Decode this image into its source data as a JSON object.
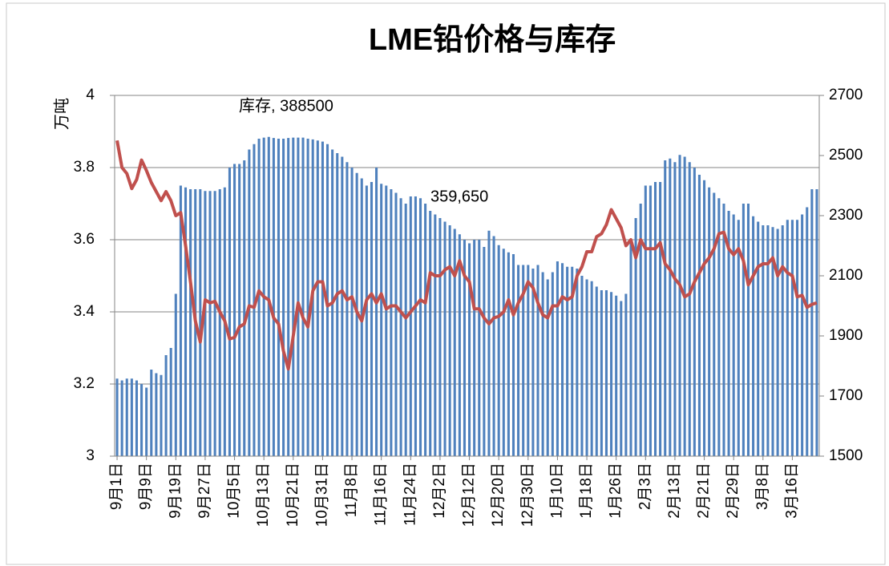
{
  "chart_data": {
    "type": "bar-line",
    "title": "LME铅价格与库存",
    "ylabel": "万吨",
    "annotations": [
      "库存, 388500",
      "359,650"
    ],
    "categories": [
      "9月1日",
      null,
      null,
      null,
      null,
      null,
      "9月9日",
      null,
      null,
      null,
      null,
      null,
      "9月19日",
      null,
      null,
      null,
      null,
      null,
      "9月27日",
      null,
      null,
      null,
      null,
      null,
      "10月5日",
      null,
      null,
      null,
      null,
      null,
      "10月13日",
      null,
      null,
      null,
      null,
      null,
      "10月21日",
      null,
      null,
      null,
      null,
      null,
      "10月31日",
      null,
      null,
      null,
      null,
      null,
      "11月8日",
      null,
      null,
      null,
      null,
      null,
      "11月16日",
      null,
      null,
      null,
      null,
      null,
      "11月24日",
      null,
      null,
      null,
      null,
      null,
      "12月2日",
      null,
      null,
      null,
      null,
      null,
      "12月12日",
      null,
      null,
      null,
      null,
      null,
      "12月20日",
      null,
      null,
      null,
      null,
      null,
      "12月30日",
      null,
      null,
      null,
      null,
      null,
      "1月10日",
      null,
      null,
      null,
      null,
      null,
      "1月18日",
      null,
      null,
      null,
      null,
      null,
      "1月26日",
      null,
      null,
      null,
      null,
      null,
      "2月3日",
      null,
      null,
      null,
      null,
      null,
      "2月13日",
      null,
      null,
      null,
      null,
      null,
      "2月21日",
      null,
      null,
      null,
      null,
      null,
      "2月29日",
      null,
      null,
      null,
      null,
      null,
      "3月8日",
      null,
      null,
      null,
      null,
      null,
      "3月16日",
      null,
      null,
      null,
      null,
      null
    ],
    "series": [
      {
        "type": "bar",
        "color": "#4f81bd",
        "axis": "y",
        "values": [
          3.215,
          3.21,
          3.215,
          3.215,
          3.21,
          3.2,
          3.19,
          3.24,
          3.23,
          3.225,
          3.28,
          3.3,
          3.45,
          3.75,
          3.745,
          3.74,
          3.74,
          3.74,
          3.735,
          3.735,
          3.735,
          3.74,
          3.745,
          3.8,
          3.81,
          3.81,
          3.82,
          3.85,
          3.865,
          3.88,
          3.883,
          3.885,
          3.882,
          3.88,
          3.88,
          3.882,
          3.883,
          3.883,
          3.883,
          3.88,
          3.878,
          3.875,
          3.872,
          3.865,
          3.85,
          3.84,
          3.83,
          3.815,
          3.8,
          3.785,
          3.77,
          3.75,
          3.76,
          3.8,
          3.755,
          3.75,
          3.74,
          3.73,
          3.715,
          3.7,
          3.72,
          3.72,
          3.715,
          3.7,
          3.68,
          3.67,
          3.66,
          3.65,
          3.64,
          3.63,
          3.615,
          3.6,
          3.59,
          3.6,
          3.6,
          3.58,
          3.625,
          3.61,
          3.585,
          3.575,
          3.565,
          3.56,
          3.53,
          3.53,
          3.53,
          3.52,
          3.53,
          3.51,
          3.49,
          3.51,
          3.54,
          3.535,
          3.525,
          3.525,
          3.52,
          3.5,
          3.49,
          3.485,
          3.47,
          3.46,
          3.46,
          3.455,
          3.445,
          3.43,
          3.45,
          3.6,
          3.66,
          3.7,
          3.75,
          3.75,
          3.76,
          3.76,
          3.82,
          3.825,
          3.815,
          3.835,
          3.83,
          3.815,
          3.8,
          3.78,
          3.765,
          3.745,
          3.73,
          3.715,
          3.7,
          3.68,
          3.67,
          3.655,
          3.7,
          3.7,
          3.665,
          3.65,
          3.64,
          3.64,
          3.635,
          3.63,
          3.64,
          3.655,
          3.655,
          3.655,
          3.67,
          3.69,
          3.74,
          3.74
        ]
      },
      {
        "type": "line",
        "color": "#c0504d",
        "axis": "y2",
        "values": [
          2550,
          2460,
          2440,
          2390,
          2420,
          2485,
          2450,
          2410,
          2380,
          2350,
          2380,
          2350,
          2300,
          2310,
          2200,
          2080,
          1950,
          1880,
          2020,
          2010,
          2015,
          1980,
          1950,
          1890,
          1895,
          1930,
          1940,
          2000,
          1995,
          2050,
          2030,
          2020,
          1960,
          1940,
          1850,
          1790,
          1900,
          2010,
          1960,
          1930,
          2050,
          2080,
          2080,
          2000,
          2010,
          2040,
          2050,
          2020,
          2030,
          1980,
          1950,
          2020,
          2040,
          2010,
          2040,
          1990,
          2000,
          2000,
          1980,
          1960,
          1980,
          2000,
          2020,
          2010,
          2110,
          2100,
          2100,
          2120,
          2130,
          2100,
          2150,
          2100,
          2080,
          1990,
          1990,
          1960,
          1940,
          1960,
          1965,
          1980,
          2020,
          1970,
          2010,
          2040,
          2080,
          2060,
          2010,
          1970,
          1960,
          2000,
          2000,
          2030,
          2020,
          2030,
          2100,
          2130,
          2180,
          2180,
          2230,
          2240,
          2270,
          2320,
          2290,
          2260,
          2200,
          2220,
          2160,
          2220,
          2190,
          2190,
          2190,
          2210,
          2140,
          2120,
          2090,
          2070,
          2030,
          2040,
          2080,
          2110,
          2140,
          2160,
          2190,
          2240,
          2245,
          2190,
          2170,
          2190,
          2150,
          2070,
          2100,
          2130,
          2140,
          2140,
          2160,
          2100,
          2130,
          2110,
          2100,
          2030,
          2035,
          1995,
          2005,
          2010
        ]
      }
    ],
    "ylim": [
      3,
      4
    ],
    "yticks": [
      3,
      3.2,
      3.4,
      3.6,
      3.8,
      4
    ],
    "y2lim": [
      1500,
      2700
    ],
    "y2ticks": [
      1500,
      1700,
      1900,
      2100,
      2300,
      2500,
      2700
    ],
    "grid": true
  }
}
